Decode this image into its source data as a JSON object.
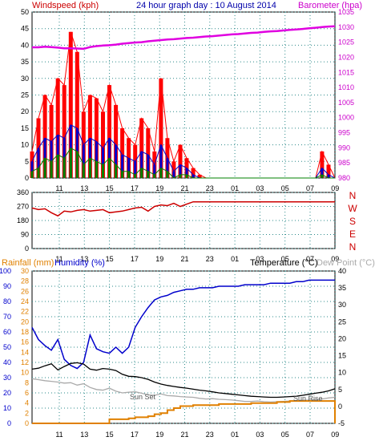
{
  "header": {
    "left": "Windspeed (kph)",
    "center": "24 hour graph day : 10 August 2014",
    "right": "Barometer (hpa)"
  },
  "legend2": {
    "rain": "Rainfall (mm)",
    "hum": "Humidity (%)",
    "temp": "Temperature (°C)",
    "dew": "Dew Point (°C)"
  },
  "annotations": {
    "sunset": "Sun Set",
    "sunrise": "Sun Rise"
  },
  "colors": {
    "wind": "#ff0000",
    "gust": "#ff0000",
    "avg": "#0000cc",
    "low": "#008000",
    "baro": "#e000e0",
    "dir": "#cc0000",
    "humidity": "#0000cc",
    "temp": "#000000",
    "dew": "#aaaaaa",
    "rain": "#e08000",
    "grid": "#2e8b8b"
  },
  "chart_data": [
    {
      "type": "line",
      "name": "wind-baro",
      "x_ticks": [
        "11",
        "13",
        "15",
        "17",
        "19",
        "21",
        "23",
        "01",
        "03",
        "05",
        "07",
        "09"
      ],
      "ylim": [
        0,
        50
      ],
      "y_ticks": [
        0,
        5,
        10,
        15,
        20,
        25,
        30,
        35,
        40,
        45,
        50
      ],
      "ylim_right": [
        980,
        1035
      ],
      "y_ticks_right": [
        980,
        985,
        990,
        995,
        1000,
        1005,
        1010,
        1015,
        1020,
        1025,
        1030,
        1035
      ],
      "series": [
        {
          "key": "gust",
          "values": [
            8,
            18,
            25,
            22,
            30,
            28,
            44,
            38,
            20,
            25,
            24,
            20,
            28,
            22,
            15,
            12,
            10,
            18,
            15,
            8,
            30,
            12,
            5,
            10,
            6,
            3,
            1,
            0,
            0,
            0,
            0,
            0,
            0,
            0,
            0,
            0,
            0,
            0,
            0,
            0,
            0,
            0,
            0,
            0,
            0,
            8,
            4,
            0
          ]
        },
        {
          "key": "avg",
          "values": [
            5,
            9,
            12,
            11,
            13,
            12,
            16,
            15,
            10,
            12,
            11,
            9,
            12,
            10,
            7,
            6,
            5,
            8,
            7,
            4,
            10,
            6,
            2,
            4,
            3,
            1,
            0,
            0,
            0,
            0,
            0,
            0,
            0,
            0,
            0,
            0,
            0,
            0,
            0,
            0,
            0,
            0,
            0,
            0,
            0,
            3,
            1,
            0
          ]
        },
        {
          "key": "low",
          "values": [
            2,
            3,
            6,
            5,
            7,
            6,
            9,
            8,
            4,
            6,
            5,
            4,
            6,
            4,
            2,
            2,
            1,
            3,
            2,
            1,
            3,
            2,
            0,
            1,
            1,
            0,
            0,
            0,
            0,
            0,
            0,
            0,
            0,
            0,
            0,
            0,
            0,
            0,
            0,
            0,
            0,
            0,
            0,
            0,
            0,
            1,
            0,
            0
          ]
        },
        {
          "key": "baro",
          "values": [
            1023.3,
            1023.3,
            1023.5,
            1023.4,
            1023.2,
            1023.0,
            1023.0,
            1022.9,
            1022.8,
            1023.4,
            1023.7,
            1023.9,
            1024.0,
            1024.2,
            1024.5,
            1024.7,
            1024.9,
            1025.0,
            1025.3,
            1025.5,
            1025.7,
            1025.9,
            1026.0,
            1026.2,
            1026.4,
            1026.5,
            1026.7,
            1026.9,
            1027.0,
            1027.2,
            1027.4,
            1027.6,
            1027.7,
            1027.9,
            1028.1,
            1028.2,
            1028.4,
            1028.6,
            1028.7,
            1028.9,
            1029.1,
            1029.2,
            1029.4,
            1029.6,
            1029.8,
            1030.0,
            1030.2,
            1030.3
          ]
        }
      ]
    },
    {
      "type": "line",
      "name": "direction",
      "x_ticks": [
        "11",
        "13",
        "15",
        "17",
        "19",
        "21",
        "23",
        "01",
        "03",
        "05",
        "07",
        "09"
      ],
      "ylim": [
        0,
        360
      ],
      "y_ticks": [
        0,
        90,
        180,
        270,
        360
      ],
      "compass": [
        "N",
        "W",
        "S",
        "E",
        "N"
      ],
      "series": [
        {
          "key": "dir",
          "values": [
            260,
            250,
            255,
            230,
            210,
            240,
            235,
            245,
            250,
            240,
            245,
            250,
            230,
            235,
            240,
            250,
            260,
            265,
            240,
            270,
            280,
            275,
            290,
            270,
            285,
            300,
            300,
            300,
            300,
            300,
            300,
            300,
            300,
            300,
            300,
            300,
            300,
            300,
            300,
            300,
            300,
            300,
            300,
            300,
            300,
            300,
            300,
            300
          ]
        }
      ]
    },
    {
      "type": "line",
      "name": "temp-hum-rain",
      "x_ticks": [
        "11",
        "13",
        "15",
        "17",
        "19",
        "21",
        "23",
        "01",
        "03",
        "05",
        "07",
        "09"
      ],
      "ylim_humidity": [
        0,
        100
      ],
      "y_ticks_humidity": [
        0,
        10,
        20,
        30,
        40,
        50,
        60,
        70,
        80,
        90,
        100
      ],
      "ylim_rain": [
        0,
        30
      ],
      "y_ticks_rain": [
        0,
        2,
        4,
        6,
        8,
        10,
        12,
        14,
        16,
        18,
        20,
        22,
        24,
        26,
        28,
        30
      ],
      "ylim_temp": [
        -5,
        40
      ],
      "y_ticks_temp": [
        -5,
        0,
        5,
        10,
        15,
        20,
        25,
        30,
        35,
        40
      ],
      "series": [
        {
          "key": "humidity",
          "values": [
            63,
            55,
            51,
            48,
            55,
            42,
            38,
            36,
            40,
            58,
            49,
            47,
            46,
            50,
            46,
            50,
            63,
            70,
            76,
            81,
            83,
            84,
            86,
            87,
            88,
            88,
            89,
            89,
            89,
            90,
            90,
            90,
            90,
            91,
            91,
            91,
            91,
            92,
            92,
            92,
            92,
            93,
            93,
            94,
            94,
            94,
            94,
            94
          ]
        },
        {
          "key": "temp",
          "values": [
            11.0,
            11.3,
            12.0,
            12.6,
            10.8,
            11.8,
            12.7,
            12.9,
            12.5,
            11.0,
            10.7,
            11.2,
            11.0,
            10.6,
            9.5,
            8.9,
            8.8,
            8.5,
            8.0,
            7.2,
            6.6,
            6.2,
            5.9,
            5.6,
            5.4,
            5.1,
            4.8,
            4.6,
            4.3,
            4.0,
            3.8,
            3.6,
            3.4,
            3.2,
            3.0,
            2.9,
            2.8,
            2.7,
            2.7,
            2.8,
            2.9,
            3.0,
            3.3,
            3.6,
            3.9,
            4.2,
            4.6,
            5.2
          ]
        },
        {
          "key": "dew",
          "values": [
            8.2,
            7.9,
            7.6,
            7.4,
            7.2,
            6.9,
            7.0,
            6.3,
            6.7,
            5.6,
            5.0,
            4.8,
            5.4,
            4.5,
            4.0,
            4.2,
            4.3,
            3.9,
            3.4,
            3.3,
            3.7,
            3.2,
            3.1,
            2.9,
            2.8,
            2.7,
            2.4,
            2.2,
            2.3,
            2.1,
            2.0,
            1.9,
            1.7,
            1.5,
            1.5,
            1.6,
            1.4,
            1.3,
            1.4,
            1.5,
            1.6,
            1.7,
            1.8,
            1.9,
            2.0,
            2.2,
            2.5,
            2.7
          ]
        },
        {
          "key": "rain",
          "values": [
            0,
            0,
            0,
            0,
            0,
            0,
            0,
            0,
            0,
            0,
            0,
            0,
            0.8,
            0.8,
            0.8,
            1.0,
            1.2,
            1.2,
            1.4,
            1.8,
            2.0,
            2.6,
            3.0,
            3.4,
            3.4,
            3.6,
            3.6,
            3.6,
            3.6,
            3.8,
            3.8,
            3.8,
            3.8,
            3.8,
            4.0,
            4.0,
            4.0,
            4.0,
            4.2,
            4.2,
            4.4,
            4.4,
            4.4,
            4.4,
            4.4,
            4.4,
            4.4,
            0
          ]
        }
      ]
    }
  ]
}
